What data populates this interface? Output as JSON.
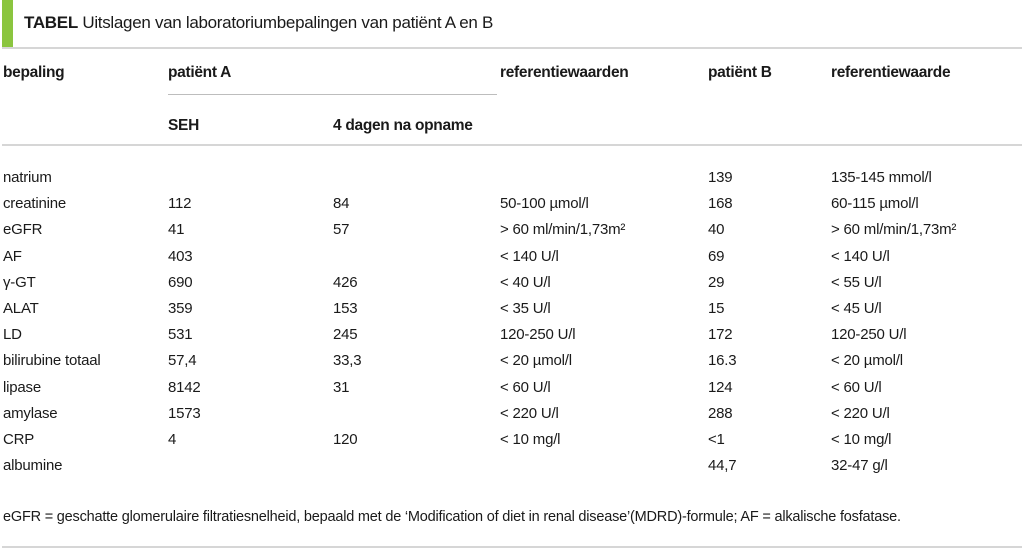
{
  "title": {
    "tag": "TABEL",
    "text": "Uitslagen van laboratoriumbepalingen van patiënt A en B"
  },
  "colors": {
    "accent_green": "#8bc53f",
    "rule_gray": "#d6d6d6"
  },
  "table": {
    "headers": {
      "bepaling": "bepaling",
      "patient_a": "patiënt A",
      "referentiewaarden": "referentiewaarden",
      "patient_b": "patiënt B",
      "referentiewaarde": "referentiewaarde"
    },
    "subheaders": {
      "seh": "SEH",
      "dagen": "4 dagen na opname"
    },
    "rows": [
      {
        "bepaling": "natrium",
        "seh": "",
        "dagen": "",
        "ref_a": "",
        "b": "139",
        "ref_b": "135-145 mmol/l"
      },
      {
        "bepaling": "creatinine",
        "seh": "112",
        "dagen": "84",
        "ref_a": "50-100 µmol/l",
        "b": "168",
        "ref_b": "60-115 µmol/l"
      },
      {
        "bepaling": "eGFR",
        "seh": "41",
        "dagen": "57",
        "ref_a": "> 60 ml/min/1,73m²",
        "b": "40",
        "ref_b": "> 60 ml/min/1,73m²"
      },
      {
        "bepaling": "AF",
        "seh": "403",
        "dagen": "",
        "ref_a": "< 140 U/l",
        "b": "69",
        "ref_b": "< 140 U/l"
      },
      {
        "bepaling": "γ-GT",
        "seh": "690",
        "dagen": "426",
        "ref_a": "< 40 U/l",
        "b": "29",
        "ref_b": "< 55 U/l"
      },
      {
        "bepaling": "ALAT",
        "seh": "359",
        "dagen": "153",
        "ref_a": "< 35 U/l",
        "b": "15",
        "ref_b": "< 45 U/l"
      },
      {
        "bepaling": "LD",
        "seh": "531",
        "dagen": "245",
        "ref_a": "120-250 U/l",
        "b": "172",
        "ref_b": "120-250 U/l"
      },
      {
        "bepaling": "bilirubine totaal",
        "seh": "57,4",
        "dagen": "33,3",
        "ref_a": "< 20 µmol/l",
        "b": "16.3",
        "ref_b": "< 20 µmol/l"
      },
      {
        "bepaling": "lipase",
        "seh": "8142",
        "dagen": "31",
        "ref_a": "< 60 U/l",
        "b": "124",
        "ref_b": "< 60 U/l"
      },
      {
        "bepaling": "amylase",
        "seh": "1573",
        "dagen": "",
        "ref_a": "< 220 U/l",
        "b": "288",
        "ref_b": "< 220 U/l"
      },
      {
        "bepaling": "CRP",
        "seh": "4",
        "dagen": "120",
        "ref_a": "< 10 mg/l",
        "b": "<1",
        "ref_b": "< 10 mg/l"
      },
      {
        "bepaling": "albumine",
        "seh": "",
        "dagen": "",
        "ref_a": "",
        "b": "44,7",
        "ref_b": "32-47 g/l"
      }
    ]
  },
  "footnote": "eGFR = geschatte glomerulaire filtratiesnelheid, bepaald met de ‘Modification of diet in renal disease’(MDRD)-formule; AF = alkalische fosfatase."
}
